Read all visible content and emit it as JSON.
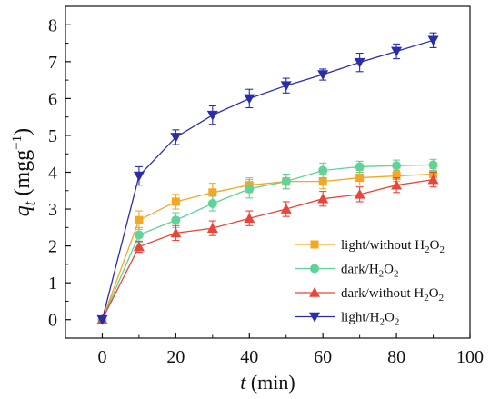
{
  "chart_data": {
    "type": "line",
    "x": [
      0,
      10,
      20,
      30,
      40,
      50,
      60,
      70,
      80,
      90
    ],
    "xlim": [
      -10,
      100
    ],
    "ylim": [
      -0.5,
      8.5
    ],
    "xticks": [
      0,
      20,
      40,
      60,
      80,
      100
    ],
    "yticks": [
      0,
      1,
      2,
      3,
      4,
      5,
      6,
      7,
      8
    ],
    "xlabel": {
      "var": "t",
      "unit": " (min)"
    },
    "ylabel": {
      "var": "q",
      "sub": "t",
      "unit": " (mgg",
      "sup": "−1",
      "close": ")"
    },
    "grid": false,
    "legend_position": "lower-right",
    "series": [
      {
        "name": "light/without H2O2",
        "label_main": "light/without H",
        "label_sub1": "2",
        "label_mid": "O",
        "label_sub2": "2",
        "color": "#F5A623",
        "marker": "square",
        "values": [
          0,
          2.7,
          3.2,
          3.45,
          3.65,
          3.75,
          3.75,
          3.85,
          3.9,
          3.95
        ],
        "errors": [
          0,
          0.25,
          0.2,
          0.25,
          0.2,
          0.2,
          0.2,
          0.2,
          0.15,
          0.15
        ]
      },
      {
        "name": "dark/H2O2",
        "label_main": "dark/H",
        "label_sub1": "2",
        "label_mid": "O",
        "label_sub2": "2",
        "color": "#5FD39A",
        "marker": "circle",
        "values": [
          0,
          2.3,
          2.7,
          3.15,
          3.55,
          3.75,
          4.05,
          4.15,
          4.18,
          4.2
        ],
        "errors": [
          0,
          0.2,
          0.2,
          0.2,
          0.25,
          0.2,
          0.2,
          0.15,
          0.15,
          0.15
        ]
      },
      {
        "name": "dark/without H2O2",
        "label_main": "dark/without H",
        "label_sub1": "2",
        "label_mid": "O",
        "label_sub2": "2",
        "color": "#E8463C",
        "marker": "triangle-up",
        "values": [
          0,
          1.98,
          2.35,
          2.48,
          2.75,
          3.0,
          3.28,
          3.4,
          3.65,
          3.8
        ],
        "errors": [
          0,
          0.15,
          0.2,
          0.2,
          0.2,
          0.2,
          0.2,
          0.2,
          0.2,
          0.2
        ]
      },
      {
        "name": "light/H2O2",
        "label_main": "light/H",
        "label_sub1": "2",
        "label_mid": "O",
        "label_sub2": "2",
        "color": "#2B2DA8",
        "marker": "triangle-down",
        "values": [
          0,
          3.9,
          4.95,
          5.55,
          6.0,
          6.35,
          6.65,
          6.98,
          7.28,
          7.58
        ],
        "errors": [
          0,
          0.25,
          0.2,
          0.25,
          0.25,
          0.2,
          0.15,
          0.25,
          0.2,
          0.2
        ]
      }
    ]
  }
}
